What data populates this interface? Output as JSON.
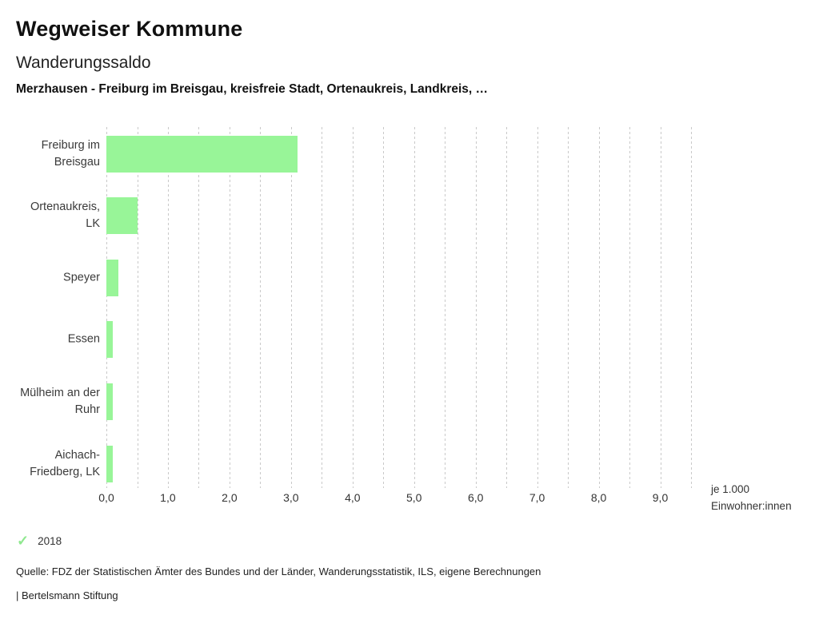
{
  "header": {
    "app_title": "Wegweiser Kommune",
    "chart_title": "Wanderungssaldo",
    "subtitle": "Merzhausen - Freiburg im Breisgau, kreisfreie Stadt, Ortenaukreis, Landkreis, …"
  },
  "chart_data": {
    "type": "bar",
    "orientation": "horizontal",
    "title": "Wanderungssaldo",
    "categories": [
      [
        "Freiburg im",
        "Breisgau"
      ],
      [
        "Ortenaukreis,",
        "LK"
      ],
      [
        "Speyer"
      ],
      [
        "Essen"
      ],
      [
        "Mülheim an der",
        "Ruhr"
      ],
      [
        "Aichach-",
        "Friedberg, LK"
      ]
    ],
    "values": [
      3.1,
      0.5,
      0.2,
      0.1,
      0.1,
      0.1
    ],
    "series_name": "2018",
    "xlim": [
      0,
      9.5
    ],
    "grid_step": 0.5,
    "xticks": [
      0,
      1,
      2,
      3,
      4,
      5,
      6,
      7,
      8,
      9
    ],
    "tick_labels": [
      "0,0",
      "1,0",
      "2,0",
      "3,0",
      "4,0",
      "5,0",
      "6,0",
      "7,0",
      "8,0",
      "9,0"
    ],
    "x_unit_lines": [
      "je 1.000",
      "Einwohner:innen"
    ],
    "bar_color": "#98f598",
    "grid_on": true,
    "legend_position": "bottom-left"
  },
  "legend": {
    "year": "2018",
    "check_glyph": "✓",
    "check_color": "#8fe88f"
  },
  "footer": {
    "source": "Quelle: FDZ der Statistischen Ämter des Bundes und der Länder, Wanderungsstatistik, ILS, eigene Berechnungen",
    "branding": "| Bertelsmann Stiftung"
  }
}
